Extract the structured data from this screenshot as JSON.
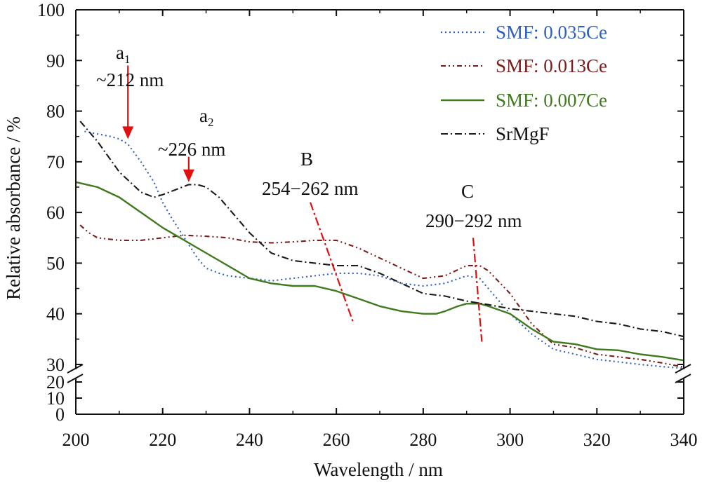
{
  "chart_data": {
    "type": "line",
    "xlabel": "Wavelength / nm",
    "ylabel": "Relative absorbance / %",
    "xlim": [
      200,
      340
    ],
    "ylim": [
      0,
      100
    ],
    "y_axis_break": [
      20,
      30
    ],
    "x_ticks": [
      "200",
      "220",
      "240",
      "260",
      "280",
      "300",
      "320",
      "340"
    ],
    "y_ticks_lower": [
      "0",
      "10",
      "20"
    ],
    "y_ticks_upper": [
      "30",
      "40",
      "50",
      "60",
      "70",
      "80",
      "90",
      "100"
    ],
    "legend_position": "top-right",
    "series": [
      {
        "name": "SMF: 0.035Ce",
        "color": "#2d5fc0",
        "style": "dotted",
        "x": [
          202,
          205,
          208,
          210,
          212,
          215,
          218,
          220,
          222,
          225,
          228,
          230,
          233,
          235,
          240,
          245,
          250,
          255,
          260,
          265,
          270,
          275,
          280,
          285,
          290,
          293,
          295,
          300,
          305,
          310,
          315,
          320,
          325,
          330,
          335,
          340
        ],
        "y": [
          76,
          75.5,
          75,
          74.5,
          73.5,
          70,
          66,
          62,
          59,
          55,
          51,
          49,
          48,
          47.5,
          47,
          46.5,
          47,
          47.5,
          48,
          48,
          47.5,
          46,
          45.5,
          46,
          47.5,
          47,
          45,
          40,
          36,
          33,
          32,
          31,
          30.5,
          30,
          29.5,
          28.5
        ]
      },
      {
        "name": "SMF: 0.013Ce",
        "color": "#7a1c1c",
        "style": "dash-dot-dot",
        "x": [
          201,
          203,
          205,
          210,
          215,
          220,
          225,
          230,
          235,
          240,
          245,
          250,
          255,
          260,
          265,
          270,
          275,
          280,
          285,
          290,
          293,
          295,
          300,
          305,
          310,
          315,
          320,
          325,
          330,
          335,
          340
        ],
        "y": [
          57.5,
          56,
          55,
          54.5,
          54.5,
          55,
          55.5,
          55.3,
          55,
          54.2,
          54,
          54.2,
          54.5,
          54.5,
          53,
          51,
          49,
          47,
          47.5,
          49.5,
          49.5,
          48.5,
          44,
          38,
          34,
          33.3,
          32,
          31.5,
          31,
          30.3,
          29.2
        ]
      },
      {
        "name": "SMF: 0.007Ce",
        "color": "#3f7a1e",
        "style": "solid",
        "x": [
          200,
          205,
          210,
          215,
          220,
          225,
          230,
          235,
          240,
          245,
          250,
          255,
          260,
          265,
          270,
          275,
          280,
          283,
          285,
          288,
          290,
          293,
          295,
          300,
          305,
          310,
          315,
          320,
          325,
          330,
          335,
          340
        ],
        "y": [
          66,
          65,
          63,
          60,
          57,
          54.5,
          52,
          49.5,
          47,
          46,
          45.5,
          45.5,
          44.5,
          43,
          41.5,
          40.5,
          40,
          40,
          40.5,
          41.5,
          42,
          42,
          41.5,
          40,
          37,
          34.5,
          34,
          33,
          32.8,
          32,
          31.5,
          30.8
        ]
      },
      {
        "name": "SrMgF",
        "color": "#1a1a1a",
        "style": "dash-dot",
        "x": [
          201,
          205,
          210,
          215,
          218,
          220,
          223,
          226,
          228,
          230,
          233,
          235,
          240,
          245,
          250,
          255,
          260,
          265,
          270,
          275,
          280,
          285,
          290,
          295,
          300,
          305,
          310,
          315,
          320,
          325,
          330,
          335,
          340
        ],
        "y": [
          78,
          74,
          68,
          64,
          63,
          63.5,
          64.5,
          65.5,
          65.5,
          65,
          63,
          61,
          56,
          52,
          50.5,
          50,
          49.5,
          49.5,
          48,
          46,
          44,
          43.5,
          42.5,
          41.8,
          41,
          40.5,
          40,
          39.5,
          38.5,
          38,
          37,
          36.5,
          35.5
        ]
      }
    ],
    "annotations": {
      "a1": {
        "letter": "a",
        "subscript": "1",
        "text": "~212 nm",
        "x": 212,
        "arrow_from_y": 89,
        "arrow_to_y": 74.5,
        "color": "#e01010"
      },
      "a2": {
        "letter": "a",
        "subscript": "2",
        "text": "~226 nm",
        "x": 226,
        "arrow_from_y": 71,
        "arrow_to_y": 66,
        "color": "#e01010"
      },
      "b": {
        "label": "B",
        "text": "254−262 nm",
        "line_x": [
          254,
          264
        ],
        "line_y": [
          62,
          38
        ],
        "color": "#e01010"
      },
      "c": {
        "label": "C",
        "text": "290−292 nm",
        "line_x": [
          291.5,
          293.5
        ],
        "line_y": [
          55,
          34.5
        ],
        "color": "#e01010"
      }
    }
  }
}
